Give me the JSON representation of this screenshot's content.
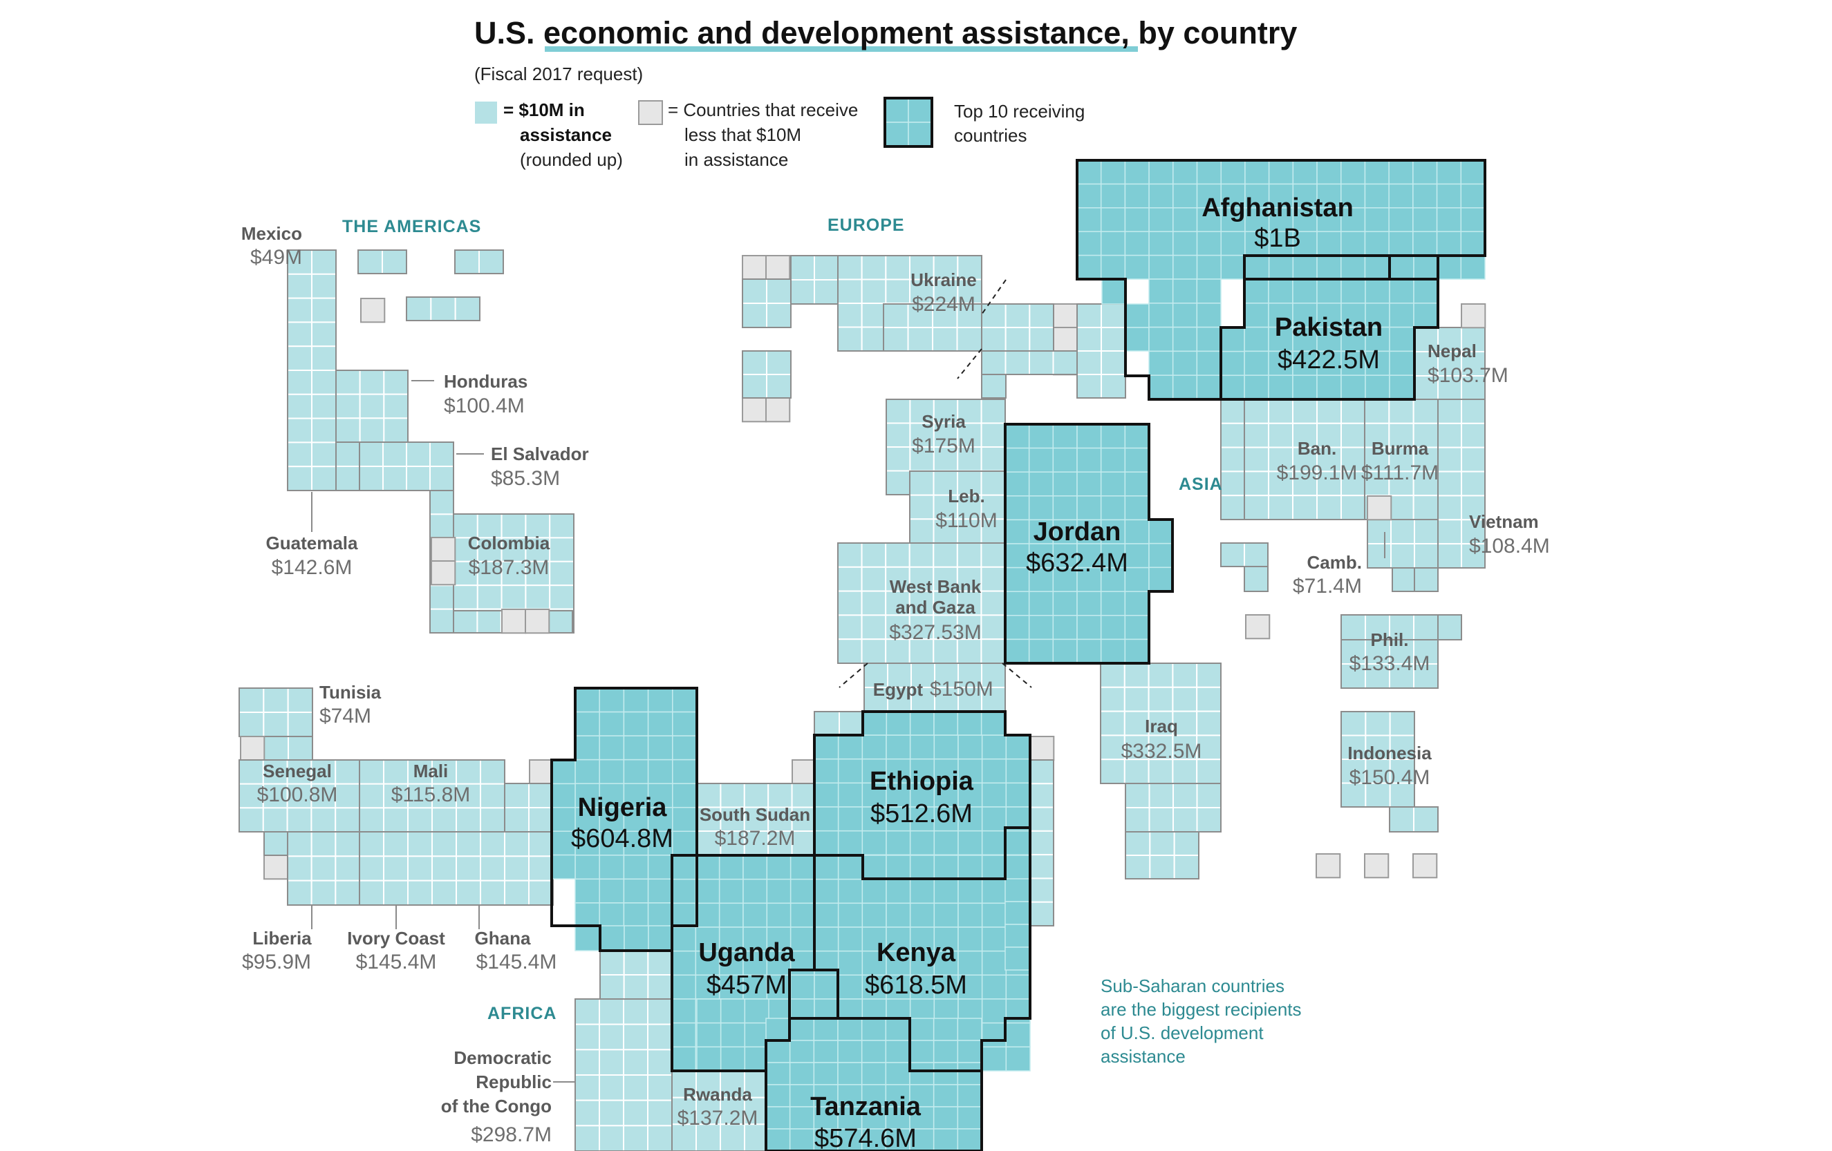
{
  "title": {
    "prefix": "U.S. ",
    "highlight": "economic and development assistance",
    "suffix": ", by country"
  },
  "subtitle": "(Fiscal 2017 request)",
  "legend": {
    "unit_bold_1": "= $10M in",
    "unit_bold_2": "assistance",
    "unit_note": "(rounded up)",
    "small_1": "= Countries that receive",
    "small_2": "less that $10M",
    "small_3": "in assistance",
    "top_1": "Top 10 receiving",
    "top_2": "countries"
  },
  "regions": {
    "americas": "THE AMERICAS",
    "europe": "EUROPE",
    "asia": "ASIA",
    "africa": "AFRICA"
  },
  "countries": {
    "mexico": {
      "name": "Mexico",
      "amount": "$49M"
    },
    "honduras": {
      "name": "Honduras",
      "amount": "$100.4M"
    },
    "el_salvador": {
      "name": "El Salvador",
      "amount": "$85.3M"
    },
    "guatemala": {
      "name": "Guatemala",
      "amount": "$142.6M"
    },
    "colombia": {
      "name": "Colombia",
      "amount": "$187.3M"
    },
    "ukraine": {
      "name": "Ukraine",
      "amount": "$224M"
    },
    "afghanistan": {
      "name": "Afghanistan",
      "amount": "$1B"
    },
    "pakistan": {
      "name": "Pakistan",
      "amount": "$422.5M"
    },
    "nepal": {
      "name": "Nepal",
      "amount": "$103.7M"
    },
    "syria": {
      "name": "Syria",
      "amount": "$175M"
    },
    "lebanon": {
      "name": "Leb.",
      "amount": "$110M"
    },
    "jordan": {
      "name": "Jordan",
      "amount": "$632.4M"
    },
    "bangladesh": {
      "name": "Ban.",
      "amount": "$199.1M"
    },
    "burma": {
      "name": "Burma",
      "amount": "$111.7M"
    },
    "vietnam": {
      "name": "Vietnam",
      "amount": "$108.4M"
    },
    "cambodia": {
      "name": "Camb.",
      "amount": "$71.4M"
    },
    "west_bank_1": "West Bank",
    "west_bank_2": "and Gaza",
    "west_bank_amount": "$327.53M",
    "egypt": {
      "name": "Egypt",
      "amount": "$150M"
    },
    "iraq": {
      "name": "Iraq",
      "amount": "$332.5M"
    },
    "philippines": {
      "name": "Phil.",
      "amount": "$133.4M"
    },
    "indonesia": {
      "name": "Indonesia",
      "amount": "$150.4M"
    },
    "tunisia": {
      "name": "Tunisia",
      "amount": "$74M"
    },
    "senegal": {
      "name": "Senegal",
      "amount": "$100.8M"
    },
    "mali": {
      "name": "Mali",
      "amount": "$115.8M"
    },
    "nigeria": {
      "name": "Nigeria",
      "amount": "$604.8M"
    },
    "south_sudan": {
      "name": "South Sudan",
      "amount": "$187.2M"
    },
    "ethiopia": {
      "name": "Ethiopia",
      "amount": "$512.6M"
    },
    "liberia": {
      "name": "Liberia",
      "amount": "$95.9M"
    },
    "ivory_coast": {
      "name": "Ivory Coast",
      "amount": "$145.4M"
    },
    "ghana": {
      "name": "Ghana",
      "amount": "$145.4M"
    },
    "uganda": {
      "name": "Uganda",
      "amount": "$457M"
    },
    "kenya": {
      "name": "Kenya",
      "amount": "$618.5M"
    },
    "drc_1": "Democratic",
    "drc_2": "Republic",
    "drc_3": "of the Congo",
    "drc_amount": "$298.7M",
    "rwanda": {
      "name": "Rwanda",
      "amount": "$137.2M"
    },
    "tanzania": {
      "name": "Tanzania",
      "amount": "$574.6M"
    }
  },
  "annotation": [
    "Sub-Saharan countries",
    "are the biggest recipients",
    "of U.S. development",
    "assistance"
  ],
  "colors": {
    "light_cell": "#b5e1e5",
    "top10_cell": "#7fcdd5",
    "small_cell": "#e6e6e6",
    "region_label": "#2d8a91",
    "title_underline": "#7fcdd5"
  }
}
